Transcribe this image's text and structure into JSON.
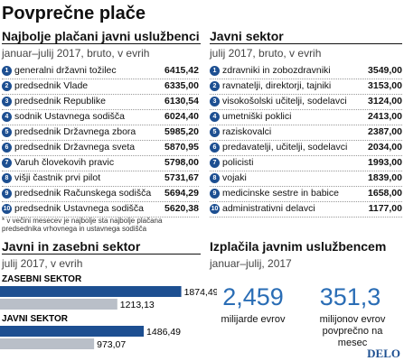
{
  "header": {
    "title": "Povprečne plače"
  },
  "left_table": {
    "title": "Najbolje plačani javni uslužbenci",
    "subtitle": "januar–julij 2017, bruto, v evrih",
    "rows": [
      [
        "1",
        "generalni državni tožilec",
        "6415,42"
      ],
      [
        "2",
        "predsednik Vlade",
        "6335,00"
      ],
      [
        "3",
        "predsednik Republike",
        "6130,54"
      ],
      [
        "4",
        "sodnik Ustavnega sodišča",
        "6024,40"
      ],
      [
        "5",
        "predsednik Državnega zbora",
        "5985,20"
      ],
      [
        "6",
        "predsednik Državnega sveta",
        "5870,95"
      ],
      [
        "7",
        "Varuh človekovih pravic",
        "5798,00"
      ],
      [
        "8",
        "višji častnik prvi pilot",
        "5731,67"
      ],
      [
        "9",
        "predsednik Računskega sodišča",
        "5694,29"
      ],
      [
        "10",
        "predsednik Ustavnega sodišča",
        "5620,38"
      ]
    ],
    "footnote": "* v večini mesecev je najbolje sta najbolje plačana predsednika vrhovnega in ustavnega sodišča"
  },
  "right_table": {
    "title": "Javni sektor",
    "subtitle": "julij 2017, bruto, v evrih",
    "rows": [
      [
        "1",
        "zdravniki in zobozdravniki",
        "3549,00"
      ],
      [
        "2",
        "ravnatelji, direktorji, tajniki",
        "3153,00"
      ],
      [
        "3",
        "visokošolski učitelji, sodelavci",
        "3124,00"
      ],
      [
        "4",
        "umetniški poklici",
        "2413,00"
      ],
      [
        "5",
        "raziskovalci",
        "2387,00"
      ],
      [
        "6",
        "predavatelji, učitelji, sodelavci",
        "2034,00"
      ],
      [
        "7",
        "policisti",
        "1993,00"
      ],
      [
        "8",
        "vojaki",
        "1839,00"
      ],
      [
        "9",
        "medicinske sestre in babice",
        "1658,00"
      ],
      [
        "10",
        "administrativni delavci",
        "1177,00"
      ]
    ]
  },
  "chart_data": {
    "type": "bar",
    "orientation": "horizontal",
    "title": "Javni in zasebni sektor",
    "subtitle": "julij 2017, v evrih",
    "categories": [
      "ZASEBNI SEKTOR",
      "JAVNI SEKTOR"
    ],
    "series": [
      {
        "color": "#1d4f91",
        "values": [
          1874.49,
          1486.49
        ],
        "value_labels": [
          "1874,49",
          "1486,49"
        ]
      },
      {
        "color": "#b9bfc8",
        "values": [
          1213.13,
          973.07
        ],
        "value_labels": [
          "1213,13",
          "973,07"
        ]
      }
    ]
  },
  "payments": {
    "title": "Izplačila javnim uslužbencem",
    "subtitle": "januar–julij, 2017",
    "items": [
      {
        "value": "2,459",
        "label": "milijarde evrov"
      },
      {
        "value": "351,3",
        "label": "milijonov evrov povprečno na mesec"
      }
    ]
  },
  "logo": "DELO"
}
